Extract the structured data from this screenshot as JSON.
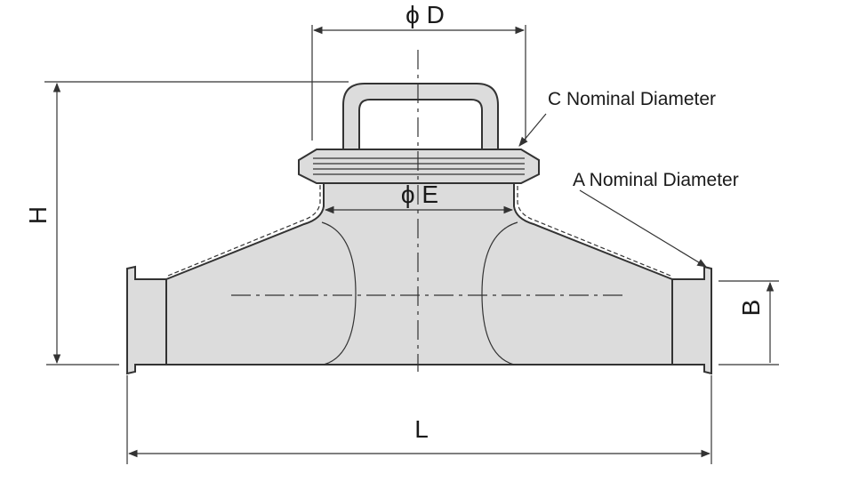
{
  "labels": {
    "dim_d": "ϕ D",
    "dim_e": "ϕ E",
    "dim_h": "H",
    "dim_l": "L",
    "dim_b": "B",
    "callout_c": "C Nominal Diameter",
    "callout_a": "A Nominal Diameter"
  },
  "colors": {
    "body_fill": "#dcdcdc",
    "line": "#333333",
    "text": "#1a1a1a"
  }
}
